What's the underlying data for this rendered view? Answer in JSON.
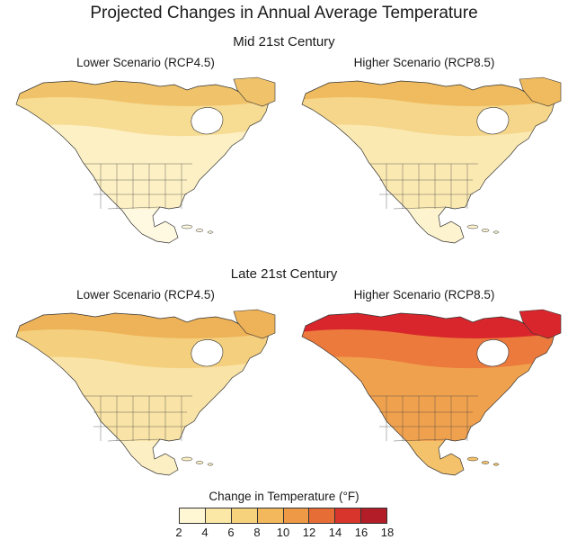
{
  "title": "Projected Changes in Annual Average Temperature",
  "sections": [
    {
      "heading": "Mid 21st Century",
      "panels": [
        {
          "label": "Lower Scenario (RCP4.5)",
          "colors": {
            "arctic": "#f0c36a",
            "canada": "#f7dc94",
            "us": "#fdf0c4",
            "mexico": "#fff9e2"
          }
        },
        {
          "label": "Higher Scenario (RCP8.5)",
          "colors": {
            "arctic": "#f0bb5e",
            "canada": "#f5d68a",
            "us": "#fbe9b2",
            "mexico": "#fdf3cf"
          }
        }
      ]
    },
    {
      "heading": "Late 21st Century",
      "panels": [
        {
          "label": "Lower Scenario (RCP4.5)",
          "colors": {
            "arctic": "#eeb258",
            "canada": "#f4d07e",
            "us": "#f9e3a6",
            "mexico": "#fcefc4"
          }
        },
        {
          "label": "Higher Scenario (RCP8.5)",
          "colors": {
            "arctic": "#d8262c",
            "canada": "#ec7a3c",
            "us": "#f0a14e",
            "mexico": "#f4c26a"
          }
        }
      ]
    }
  ],
  "legend": {
    "title": "Change in Temperature (°F)",
    "ticks": [
      "2",
      "4",
      "6",
      "8",
      "10",
      "12",
      "14",
      "16",
      "18"
    ],
    "colors": [
      "#fff7d4",
      "#fbe7a6",
      "#f7d27c",
      "#f3b85c",
      "#ee9946",
      "#e66e36",
      "#d8362c",
      "#b21d28"
    ]
  }
}
